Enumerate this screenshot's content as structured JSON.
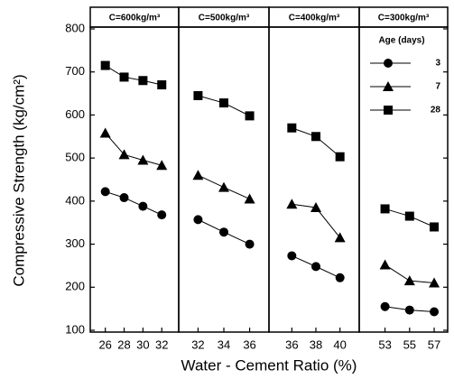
{
  "chart_data": {
    "type": "line",
    "ylabel": "Compressive Strength (kg/cm²)",
    "xlabel": "Water - Cement Ratio (%)",
    "ylim": [
      100,
      800
    ],
    "yticks": [
      100,
      200,
      300,
      400,
      500,
      600,
      700,
      800
    ],
    "color": "#000000",
    "legend": {
      "title": "Age (days)",
      "entries": [
        {
          "name": "3",
          "marker": "circle"
        },
        {
          "name": "7",
          "marker": "triangle"
        },
        {
          "name": "28",
          "marker": "square"
        }
      ]
    },
    "panels": [
      {
        "title": "C=600kg/m³",
        "x": [
          26,
          28,
          30,
          32
        ],
        "xlim": [
          24.4,
          33.8
        ],
        "series": [
          {
            "values": [
              422,
              408,
              388,
              368
            ]
          },
          {
            "values": [
              558,
              508,
              495,
              483
            ]
          },
          {
            "values": [
              715,
              688,
              680,
              670
            ]
          }
        ]
      },
      {
        "title": "C=500kg/m³",
        "x": [
          32,
          34,
          36
        ],
        "xlim": [
          30.5,
          37.5
        ],
        "series": [
          {
            "values": [
              357,
              328,
              300
            ]
          },
          {
            "values": [
              460,
              432,
              405
            ]
          },
          {
            "values": [
              645,
              628,
              598
            ]
          }
        ]
      },
      {
        "title": "C=400kg/m³",
        "x": [
          36,
          38,
          40
        ],
        "xlim": [
          34.1,
          41.6
        ],
        "series": [
          {
            "values": [
              273,
              248,
              222
            ]
          },
          {
            "values": [
              393,
              385,
              315
            ]
          },
          {
            "values": [
              570,
              550,
              503
            ]
          }
        ]
      },
      {
        "title": "C=300kg/m³",
        "x": [
          53,
          55,
          57
        ],
        "xlim": [
          50.9,
          58.1
        ],
        "series": [
          {
            "values": [
              155,
              147,
              143
            ]
          },
          {
            "values": [
              252,
              215,
              210
            ]
          },
          {
            "values": [
              382,
              365,
              340
            ]
          }
        ]
      }
    ]
  }
}
